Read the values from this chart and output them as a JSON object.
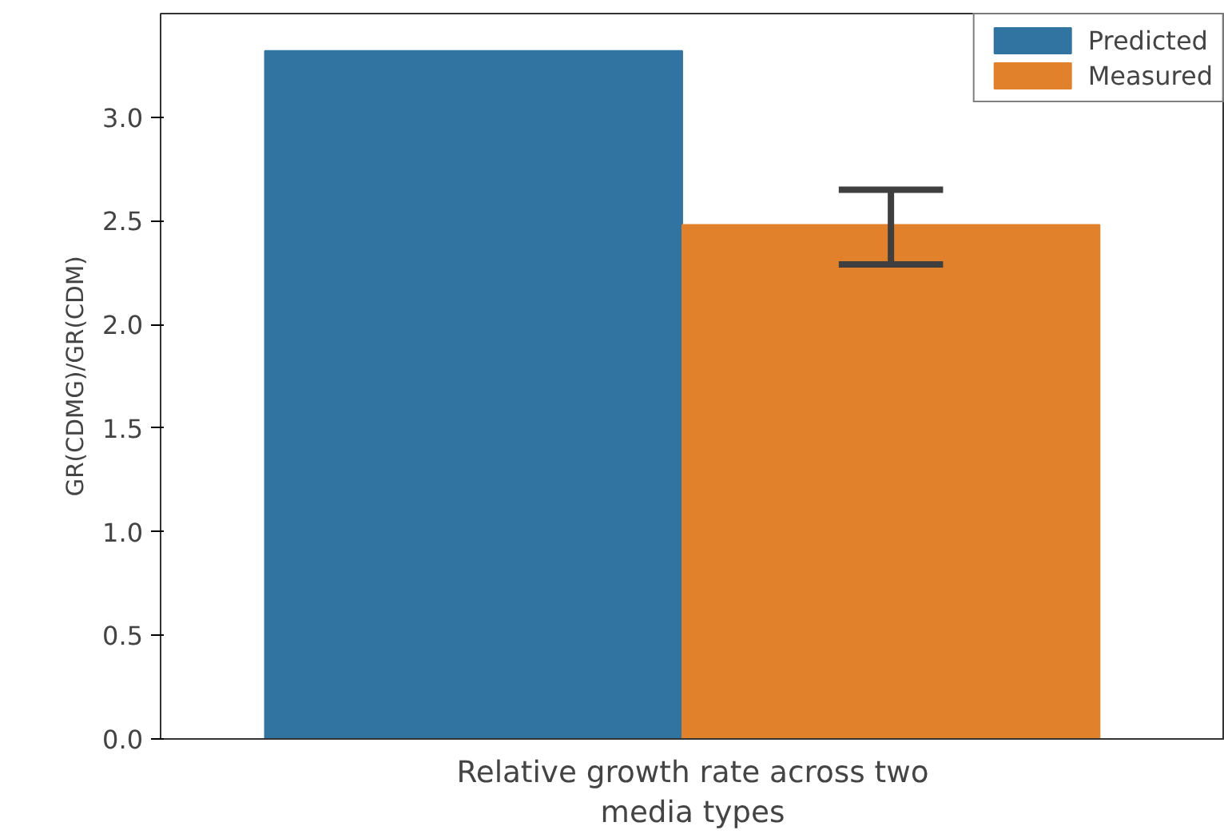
{
  "chart_data": {
    "type": "bar",
    "xlabel": "Relative growth rate across two\nmedia types",
    "ylabel": "GR(CDMG)/GR(CDM)",
    "categories": [
      null
    ],
    "series": [
      {
        "name": "Predicted",
        "color": "#3274a1",
        "values": [
          3.32
        ],
        "errors": [
          null
        ]
      },
      {
        "name": "Measured",
        "color": "#e1812c",
        "values": [
          2.48
        ],
        "errors": [
          [
            2.29,
            2.65
          ]
        ]
      }
    ],
    "ylim": [
      0,
      3.5
    ],
    "yticks": [
      {
        "value": 0,
        "label": "0.0"
      },
      {
        "value": 0.5,
        "label": "0.5"
      },
      {
        "value": 1,
        "label": "1.0"
      },
      {
        "value": 1.5,
        "label": "1.5"
      },
      {
        "value": 2,
        "label": "2.0"
      },
      {
        "value": 2.5,
        "label": "2.5"
      },
      {
        "value": 3,
        "label": "3.0"
      }
    ],
    "grid": false,
    "legend": "top right"
  }
}
